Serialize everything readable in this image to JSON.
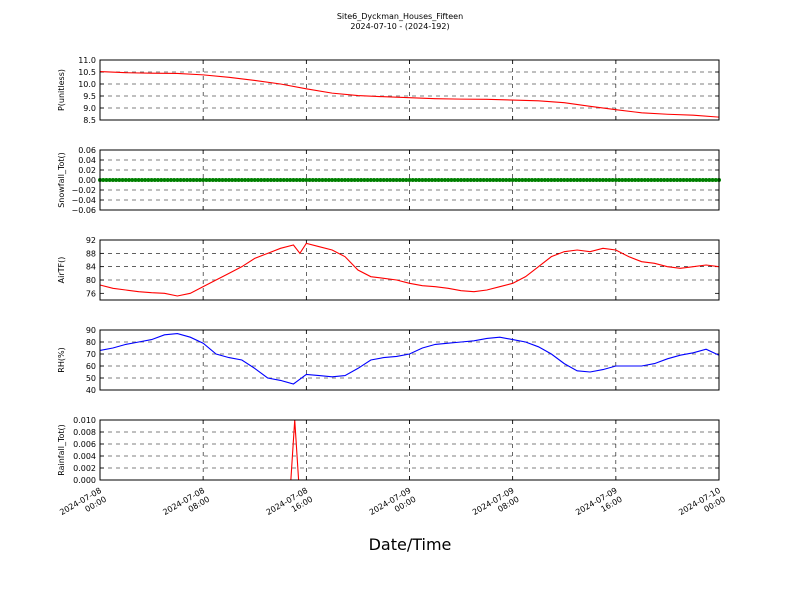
{
  "figure": {
    "title_line1": "Site6_Dyckman_Houses_Fifteen",
    "title_line2": "2024-07-10 - (2024-192)",
    "xlabel": "Date/Time",
    "x_ticks": [
      {
        "value": 0,
        "line1": "2024-07-08",
        "line2": "00:00"
      },
      {
        "value": 8,
        "line1": "2024-07-08",
        "line2": "08:00"
      },
      {
        "value": 16,
        "line1": "2024-07-08",
        "line2": "16:00"
      },
      {
        "value": 24,
        "line1": "2024-07-09",
        "line2": "00:00"
      },
      {
        "value": 32,
        "line1": "2024-07-09",
        "line2": "08:00"
      },
      {
        "value": 40,
        "line1": "2024-07-09",
        "line2": "16:00"
      },
      {
        "value": 48,
        "line1": "2024-07-10",
        "line2": "00:00"
      }
    ]
  },
  "chart_data": [
    {
      "type": "line",
      "ylabel": "P(unitless)",
      "xlim": [
        0,
        48
      ],
      "ylim": [
        8.5,
        11.0
      ],
      "yticks": [
        8.5,
        9.0,
        9.5,
        10.0,
        10.5,
        11.0
      ],
      "ytick_labels": [
        "8.5",
        "9.0",
        "9.5",
        "10.0",
        "10.5",
        "11.0"
      ],
      "grid": true,
      "color": "#ff0000",
      "x": [
        0,
        2,
        4,
        6,
        8,
        10,
        12,
        14,
        16,
        18,
        20,
        22,
        24,
        26,
        28,
        30,
        32,
        34,
        36,
        38,
        40,
        42,
        44,
        46,
        48
      ],
      "y": [
        10.52,
        10.47,
        10.45,
        10.44,
        10.38,
        10.28,
        10.15,
        10.0,
        9.8,
        9.62,
        9.52,
        9.47,
        9.43,
        9.39,
        9.37,
        9.36,
        9.33,
        9.3,
        9.22,
        9.07,
        8.93,
        8.8,
        8.74,
        8.7,
        8.62
      ]
    },
    {
      "type": "scatter",
      "ylabel": "Snowfall_Tot()",
      "xlim": [
        0,
        48
      ],
      "ylim": [
        -0.06,
        0.06
      ],
      "yticks": [
        -0.06,
        -0.04,
        -0.02,
        0.0,
        0.02,
        0.04,
        0.06
      ],
      "ytick_labels": [
        "−0.06",
        "−0.04",
        "−0.02",
        "0.00",
        "0.02",
        "0.04",
        "0.06"
      ],
      "grid": true,
      "color": "#008000",
      "x_start": 0,
      "x_end": 48,
      "x_step": 0.25,
      "constant_value": 0.0
    },
    {
      "type": "line",
      "ylabel": "AirTF()",
      "xlim": [
        0,
        48
      ],
      "ylim": [
        74,
        92
      ],
      "yticks": [
        76,
        80,
        84,
        88,
        92
      ],
      "ytick_labels": [
        "76",
        "80",
        "84",
        "88",
        "92"
      ],
      "grid": true,
      "color": "#ff0000",
      "x": [
        0,
        1,
        2,
        3,
        4,
        5,
        6,
        7,
        8,
        9,
        10,
        11,
        12,
        13,
        14,
        15,
        15.5,
        16,
        17,
        18,
        19,
        20,
        21,
        22,
        23,
        24,
        25,
        26,
        27,
        28,
        29,
        30,
        31,
        32,
        33,
        34,
        35,
        36,
        37,
        38,
        39,
        40,
        41,
        42,
        43,
        44,
        45,
        46,
        47,
        48
      ],
      "y": [
        78.5,
        77.5,
        77,
        76.5,
        76.2,
        76,
        75.2,
        76,
        78,
        80,
        82,
        84,
        86.5,
        88,
        89.5,
        90.5,
        88,
        91,
        90,
        89,
        87,
        83,
        81,
        80.5,
        80,
        79,
        78.3,
        78,
        77.5,
        76.8,
        76.5,
        77,
        78,
        79,
        81,
        84,
        87,
        88.5,
        89,
        88.5,
        89.5,
        89,
        87,
        85.5,
        85,
        84,
        83.5,
        84,
        84.5,
        84
      ]
    },
    {
      "type": "line",
      "ylabel": "RH(%)",
      "xlim": [
        0,
        48
      ],
      "ylim": [
        40,
        90
      ],
      "yticks": [
        40,
        50,
        60,
        70,
        80,
        90
      ],
      "ytick_labels": [
        "40",
        "50",
        "60",
        "70",
        "80",
        "90"
      ],
      "grid": true,
      "color": "#0000ff",
      "x": [
        0,
        1,
        2,
        3,
        4,
        5,
        6,
        7,
        8,
        9,
        10,
        11,
        12,
        13,
        14,
        15,
        16,
        17,
        18,
        19,
        20,
        21,
        22,
        23,
        24,
        25,
        26,
        27,
        28,
        29,
        30,
        31,
        32,
        33,
        34,
        35,
        36,
        37,
        38,
        39,
        40,
        41,
        42,
        43,
        44,
        45,
        46,
        47,
        48
      ],
      "y": [
        73,
        75,
        78,
        80,
        82,
        86,
        87,
        84,
        79,
        70,
        67,
        65,
        58,
        50,
        48,
        45,
        53,
        52,
        51,
        52,
        58,
        65,
        67,
        68,
        70,
        75,
        78,
        79,
        80,
        81,
        83,
        84,
        82,
        80,
        76,
        70,
        62,
        56,
        55,
        57,
        60,
        60,
        60,
        62,
        66,
        69,
        71,
        74,
        69
      ]
    },
    {
      "type": "line",
      "ylabel": "Rainfall_Tot()",
      "xlim": [
        0,
        48
      ],
      "ylim": [
        0.0,
        0.01
      ],
      "yticks": [
        0.0,
        0.002,
        0.004,
        0.006,
        0.008,
        0.01
      ],
      "ytick_labels": [
        "0.000",
        "0.002",
        "0.004",
        "0.006",
        "0.008",
        "0.010"
      ],
      "grid": true,
      "color": "#ff0000",
      "x": [
        0,
        14.8,
        15.1,
        15.4,
        48
      ],
      "y": [
        0,
        0,
        0.01,
        0,
        0
      ]
    }
  ]
}
